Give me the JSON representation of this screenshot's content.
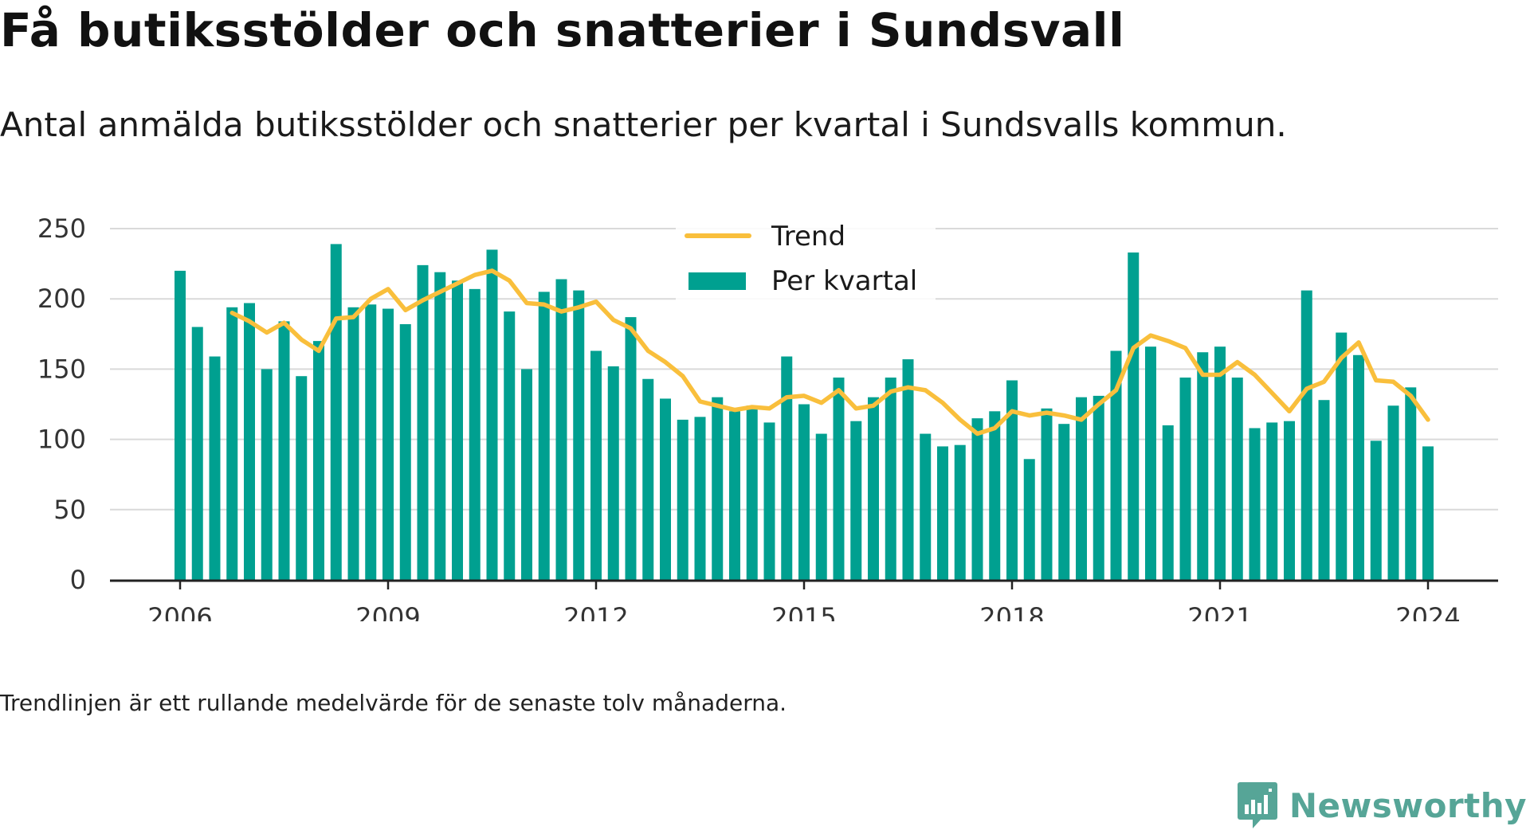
{
  "title": "Få butiksstölder och snatterier i Sundsvall",
  "subtitle": "Antal anmälda butiksstölder och snatterier per kvartal i Sundsvalls kommun.",
  "note": "Trendlinjen är ett rullande medelvärde för de senaste tolv månaderna.",
  "brand": "Newsworthy",
  "colors": {
    "bars": "#00a090",
    "trend": "#f9bf3c",
    "grid": "#d9d9d9",
    "axis": "#222222",
    "brand": "#56a597"
  },
  "chart_data": {
    "type": "bar",
    "title": "Få butiksstölder och snatterier i Sundsvall",
    "subtitle": "Antal anmälda butiksstölder och snatterier per kvartal i Sundsvalls kommun.",
    "xlabel": "",
    "ylabel": "",
    "ylim": [
      0,
      250
    ],
    "yticks": [
      0,
      50,
      100,
      150,
      200,
      250
    ],
    "xticks": [
      "2006",
      "2009",
      "2012",
      "2015",
      "2018",
      "2021",
      "2024"
    ],
    "x_start": "2006 Q1",
    "grid": true,
    "legend_position": "top-center",
    "series": [
      {
        "name": "Per kvartal",
        "kind": "bar",
        "values": [
          220,
          180,
          159,
          194,
          197,
          150,
          184,
          145,
          170,
          239,
          194,
          196,
          193,
          182,
          224,
          219,
          213,
          207,
          235,
          191,
          150,
          205,
          214,
          206,
          163,
          152,
          187,
          143,
          129,
          114,
          116,
          130,
          120,
          124,
          112,
          159,
          125,
          104,
          144,
          113,
          130,
          144,
          157,
          104,
          95,
          96,
          115,
          120,
          142,
          86,
          122,
          111,
          130,
          131,
          163,
          233,
          166,
          110,
          144,
          162,
          166,
          144,
          108,
          112,
          113,
          206,
          128,
          176,
          160,
          99,
          124,
          137,
          95
        ]
      },
      {
        "name": "Trend",
        "kind": "line",
        "start_index": 3,
        "values": [
          190,
          184,
          176,
          183,
          171,
          163,
          186,
          187,
          200,
          207,
          192,
          199,
          205,
          211,
          217,
          220,
          213,
          197,
          196,
          191,
          194,
          198,
          185,
          179,
          163,
          155,
          145,
          127,
          124,
          121,
          123,
          122,
          130,
          131,
          126,
          135,
          122,
          124,
          134,
          137,
          135,
          126,
          114,
          104,
          108,
          120,
          117,
          119,
          117,
          114,
          125,
          135,
          165,
          174,
          170,
          165,
          146,
          146,
          155,
          146,
          133,
          120,
          136,
          141,
          158,
          169,
          142,
          141,
          131,
          114
        ]
      }
    ]
  }
}
